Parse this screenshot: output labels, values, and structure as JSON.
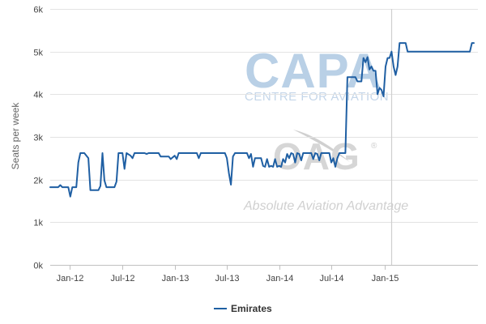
{
  "chart_data": {
    "type": "line",
    "title": "",
    "xlabel": "",
    "ylabel": "Seats per week",
    "ylim": [
      0,
      6000
    ],
    "yticks": [
      0,
      1000,
      2000,
      3000,
      4000,
      5000,
      6000
    ],
    "ytick_labels": [
      "0k",
      "1k",
      "2k",
      "3k",
      "4k",
      "5k",
      "6k"
    ],
    "xlim": [
      "2011-10-24",
      "2015-11-23"
    ],
    "xticks": [
      "2012-01-01",
      "2012-07-01",
      "2013-01-01",
      "2013-07-01",
      "2014-01-01",
      "2014-07-01",
      "2015-01-01"
    ],
    "xtick_labels": [
      "Jan-12",
      "Jul-12",
      "Jan-13",
      "Jul-13",
      "Jan-14",
      "Jul-14",
      "Jan-15"
    ],
    "current_date_marker": "2015-01-25",
    "grid": "horizontal",
    "legend_position": "bottom",
    "series": [
      {
        "name": "Emirates",
        "color": "#1f5fa3",
        "points": [
          [
            "2011-10-24",
            1820
          ],
          [
            "2011-11-21",
            1820
          ],
          [
            "2011-11-28",
            1870
          ],
          [
            "2011-12-05",
            1820
          ],
          [
            "2011-12-26",
            1820
          ],
          [
            "2012-01-02",
            1600
          ],
          [
            "2012-01-09",
            1820
          ],
          [
            "2012-01-23",
            1820
          ],
          [
            "2012-01-30",
            2400
          ],
          [
            "2012-02-06",
            2620
          ],
          [
            "2012-02-20",
            2620
          ],
          [
            "2012-03-05",
            2500
          ],
          [
            "2012-03-12",
            1750
          ],
          [
            "2012-04-09",
            1750
          ],
          [
            "2012-04-16",
            1850
          ],
          [
            "2012-04-23",
            2620
          ],
          [
            "2012-04-30",
            1980
          ],
          [
            "2012-05-07",
            1820
          ],
          [
            "2012-06-04",
            1820
          ],
          [
            "2012-06-11",
            1950
          ],
          [
            "2012-06-18",
            2620
          ],
          [
            "2012-07-02",
            2620
          ],
          [
            "2012-07-09",
            2250
          ],
          [
            "2012-07-16",
            2620
          ],
          [
            "2012-07-30",
            2560
          ],
          [
            "2012-08-06",
            2500
          ],
          [
            "2012-08-13",
            2620
          ],
          [
            "2012-09-17",
            2620
          ],
          [
            "2012-09-24",
            2600
          ],
          [
            "2012-10-01",
            2620
          ],
          [
            "2012-11-05",
            2620
          ],
          [
            "2012-11-12",
            2540
          ],
          [
            "2012-12-10",
            2540
          ],
          [
            "2012-12-17",
            2480
          ],
          [
            "2012-12-31",
            2560
          ],
          [
            "2013-01-07",
            2480
          ],
          [
            "2013-01-14",
            2620
          ],
          [
            "2013-03-18",
            2620
          ],
          [
            "2013-03-25",
            2500
          ],
          [
            "2013-04-01",
            2620
          ],
          [
            "2013-06-24",
            2620
          ],
          [
            "2013-07-01",
            2500
          ],
          [
            "2013-07-08",
            2150
          ],
          [
            "2013-07-15",
            1880
          ],
          [
            "2013-07-22",
            2540
          ],
          [
            "2013-07-29",
            2620
          ],
          [
            "2013-09-09",
            2620
          ],
          [
            "2013-09-16",
            2500
          ],
          [
            "2013-09-23",
            2600
          ],
          [
            "2013-09-30",
            2300
          ],
          [
            "2013-10-07",
            2500
          ],
          [
            "2013-10-28",
            2500
          ],
          [
            "2013-11-04",
            2320
          ],
          [
            "2013-11-11",
            2300
          ],
          [
            "2013-11-18",
            2480
          ],
          [
            "2013-11-25",
            2300
          ],
          [
            "2013-12-02",
            2320
          ],
          [
            "2013-12-09",
            2300
          ],
          [
            "2013-12-16",
            2480
          ],
          [
            "2013-12-23",
            2300
          ],
          [
            "2013-12-30",
            2320
          ],
          [
            "2014-01-06",
            2300
          ],
          [
            "2014-01-13",
            2480
          ],
          [
            "2014-01-20",
            2400
          ],
          [
            "2014-01-27",
            2600
          ],
          [
            "2014-02-03",
            2500
          ],
          [
            "2014-02-10",
            2620
          ],
          [
            "2014-02-17",
            2600
          ],
          [
            "2014-02-24",
            2400
          ],
          [
            "2014-03-03",
            2620
          ],
          [
            "2014-03-10",
            2600
          ],
          [
            "2014-03-17",
            2450
          ],
          [
            "2014-03-24",
            2620
          ],
          [
            "2014-04-21",
            2620
          ],
          [
            "2014-04-28",
            2480
          ],
          [
            "2014-05-05",
            2620
          ],
          [
            "2014-05-12",
            2600
          ],
          [
            "2014-05-19",
            2450
          ],
          [
            "2014-05-26",
            2620
          ],
          [
            "2014-06-23",
            2620
          ],
          [
            "2014-06-30",
            2400
          ],
          [
            "2014-07-07",
            2500
          ],
          [
            "2014-07-14",
            2300
          ],
          [
            "2014-07-21",
            2500
          ],
          [
            "2014-07-28",
            2620
          ],
          [
            "2014-08-18",
            2620
          ],
          [
            "2014-08-25",
            4400
          ],
          [
            "2014-09-22",
            4400
          ],
          [
            "2014-09-29",
            4300
          ],
          [
            "2014-10-13",
            4300
          ],
          [
            "2014-10-20",
            4850
          ],
          [
            "2014-10-27",
            4750
          ],
          [
            "2014-11-03",
            4870
          ],
          [
            "2014-11-10",
            4580
          ],
          [
            "2014-11-17",
            4650
          ],
          [
            "2014-11-24",
            4550
          ],
          [
            "2014-12-01",
            4550
          ],
          [
            "2014-12-08",
            4000
          ],
          [
            "2014-12-15",
            4150
          ],
          [
            "2014-12-22",
            4100
          ],
          [
            "2014-12-29",
            3950
          ],
          [
            "2015-01-05",
            4650
          ],
          [
            "2015-01-12",
            4850
          ],
          [
            "2015-01-19",
            4850
          ],
          [
            "2015-01-26",
            5000
          ],
          [
            "2015-02-02",
            4650
          ],
          [
            "2015-02-09",
            4450
          ],
          [
            "2015-02-16",
            4650
          ],
          [
            "2015-02-23",
            5200
          ],
          [
            "2015-03-16",
            5200
          ],
          [
            "2015-03-23",
            5000
          ],
          [
            "2015-10-26",
            5000
          ],
          [
            "2015-11-02",
            5200
          ],
          [
            "2015-11-09",
            5200
          ]
        ]
      }
    ]
  },
  "watermark": {
    "logo_text": "CAPA",
    "logo_subtext": "CENTRE FOR AVIATION",
    "oag_text": "OAG",
    "oag_mark": "®",
    "tagline": "Absolute Aviation Advantage"
  },
  "legend": {
    "label": "Emirates"
  }
}
